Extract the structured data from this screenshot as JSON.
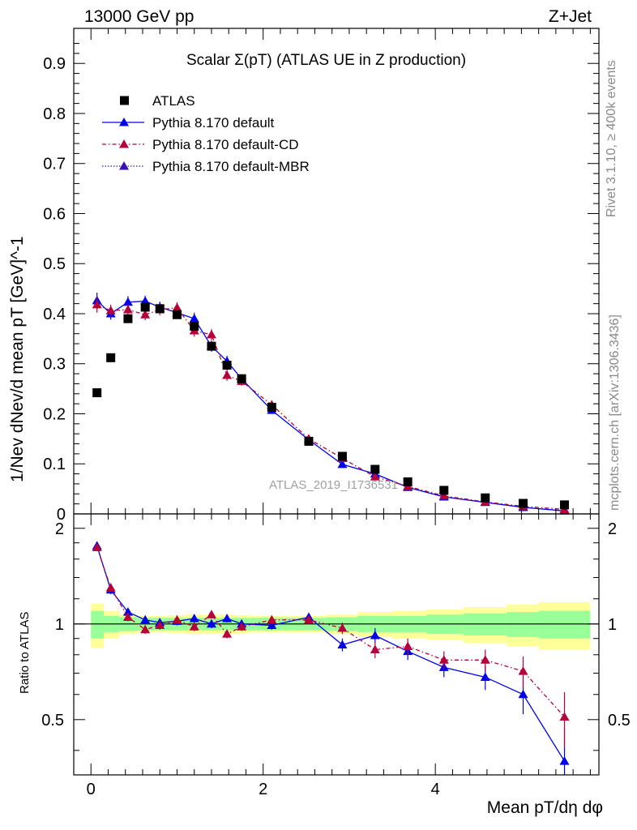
{
  "header": {
    "energy": "13000 GeV pp",
    "process": "Z+Jet"
  },
  "side_text": {
    "rivet": "Rivet 3.1.10, ≥ 400k events",
    "site": "mcplots.cern.ch [arXiv:1306.3436]"
  },
  "watermark": "ATLAS_2019_I1736531",
  "chart_data": [
    {
      "type": "scatter",
      "panel": "main",
      "title": "Scalar Σ(pT) (ATLAS UE in Z production)",
      "xlabel": "Mean pT/dη dφ",
      "ylabel": "1/Nev dNev/d mean pT [GeV]^-1",
      "xlim": [
        -0.2,
        5.9
      ],
      "ylim": [
        0,
        0.97
      ],
      "yticks": [
        0,
        0.1,
        0.2,
        0.3,
        0.4,
        0.5,
        0.6,
        0.7,
        0.8,
        0.9
      ],
      "ytick_labels": [
        "0",
        "0.1",
        "0.2",
        "0.3",
        "0.4",
        "0.5",
        "0.6",
        "0.7",
        "0.8",
        "0.9"
      ],
      "x": [
        0.07,
        0.23,
        0.43,
        0.63,
        0.8,
        1.0,
        1.2,
        1.4,
        1.58,
        1.75,
        2.1,
        2.53,
        2.92,
        3.3,
        3.68,
        4.1,
        4.58,
        5.02,
        5.5
      ],
      "series": [
        {
          "name": "ATLAS",
          "color": "#000000",
          "values": [
            0.242,
            0.312,
            0.39,
            0.413,
            0.41,
            0.398,
            0.375,
            0.335,
            0.297,
            0.27,
            0.213,
            0.145,
            0.115,
            0.089,
            0.064,
            0.047,
            0.032,
            0.021,
            0.018
          ]
        },
        {
          "name": "Pythia 8.170 default",
          "color": "#0000ee",
          "values": [
            0.426,
            0.4,
            0.423,
            0.425,
            0.413,
            0.402,
            0.39,
            0.335,
            0.305,
            0.27,
            0.207,
            0.148,
            0.099,
            0.08,
            0.053,
            0.034,
            0.023,
            0.013,
            0.006
          ],
          "errors": [
            0.016,
            0.012,
            0.012,
            0.011,
            0.011,
            0.011,
            0.012,
            0.011,
            0.011,
            0.009,
            0.007,
            0.006,
            0.005,
            0.004,
            0.003,
            0.003,
            0.002,
            0.002,
            0.002
          ]
        },
        {
          "name": "Pythia 8.170 default-CD",
          "color": "#b5003a",
          "values": [
            0.418,
            0.406,
            0.408,
            0.398,
            0.408,
            0.412,
            0.366,
            0.358,
            0.277,
            0.265,
            0.218,
            0.15,
            0.111,
            0.074,
            0.055,
            0.036,
            0.024,
            0.015,
            0.009
          ],
          "errors": [
            0.016,
            0.012,
            0.012,
            0.011,
            0.011,
            0.011,
            0.012,
            0.011,
            0.011,
            0.009,
            0.007,
            0.006,
            0.005,
            0.004,
            0.003,
            0.003,
            0.002,
            0.002,
            0.002
          ]
        },
        {
          "name": "Pythia 8.170 default-MBR",
          "color": "#3a10b0",
          "values": []
        }
      ]
    },
    {
      "type": "scatter",
      "panel": "ratio",
      "ylabel": "Ratio to ATLAS",
      "xlabel": "Mean pT/dη dφ",
      "xlim": [
        -0.2,
        5.9
      ],
      "ylim": [
        0.335,
        2.22
      ],
      "xticks": [
        0,
        2,
        4
      ],
      "xtick_labels": [
        "0",
        "2",
        "4"
      ],
      "yticks": [
        0.5,
        1,
        2
      ],
      "ytick_labels": [
        "0.5",
        "1",
        "2"
      ],
      "bin_edges": [
        0.0,
        0.15,
        0.33,
        0.53,
        0.73,
        0.9,
        1.1,
        1.3,
        1.5,
        1.67,
        1.85,
        2.35,
        2.73,
        3.1,
        3.5,
        3.9,
        4.33,
        4.83,
        5.2,
        5.8
      ],
      "band_inner": [
        0.1,
        0.06,
        0.05,
        0.045,
        0.045,
        0.045,
        0.045,
        0.045,
        0.045,
        0.045,
        0.045,
        0.045,
        0.05,
        0.06,
        0.06,
        0.07,
        0.08,
        0.09,
        0.1
      ],
      "band_outer": [
        0.16,
        0.1,
        0.07,
        0.06,
        0.06,
        0.065,
        0.07,
        0.07,
        0.07,
        0.065,
        0.06,
        0.06,
        0.07,
        0.09,
        0.1,
        0.11,
        0.13,
        0.15,
        0.17
      ],
      "x": [
        0.07,
        0.23,
        0.43,
        0.63,
        0.8,
        1.0,
        1.2,
        1.4,
        1.58,
        1.75,
        2.1,
        2.53,
        2.92,
        3.3,
        3.68,
        4.1,
        4.58,
        5.02,
        5.5
      ],
      "series": [
        {
          "name": "Pythia 8.170 default",
          "color": "#0000ee",
          "values": [
            1.76,
            1.28,
            1.09,
            1.03,
            1.01,
            1.02,
            1.04,
            1.0,
            1.04,
            1.0,
            0.99,
            1.05,
            0.86,
            0.92,
            0.82,
            0.73,
            0.68,
            0.6,
            0.37
          ],
          "errors": [
            0.04,
            0.04,
            0.03,
            0.03,
            0.03,
            0.03,
            0.03,
            0.03,
            0.03,
            0.03,
            0.03,
            0.03,
            0.04,
            0.05,
            0.05,
            0.05,
            0.06,
            0.08,
            0.1
          ]
        },
        {
          "name": "Pythia 8.170 default-CD",
          "color": "#b5003a",
          "values": [
            1.74,
            1.3,
            1.05,
            0.96,
            0.99,
            1.03,
            0.98,
            1.07,
            0.93,
            0.98,
            1.03,
            1.03,
            0.97,
            0.83,
            0.85,
            0.77,
            0.77,
            0.71,
            0.51
          ],
          "errors": [
            0.04,
            0.04,
            0.03,
            0.03,
            0.03,
            0.03,
            0.03,
            0.03,
            0.03,
            0.03,
            0.03,
            0.03,
            0.04,
            0.05,
            0.05,
            0.05,
            0.06,
            0.08,
            0.1
          ]
        }
      ]
    }
  ]
}
